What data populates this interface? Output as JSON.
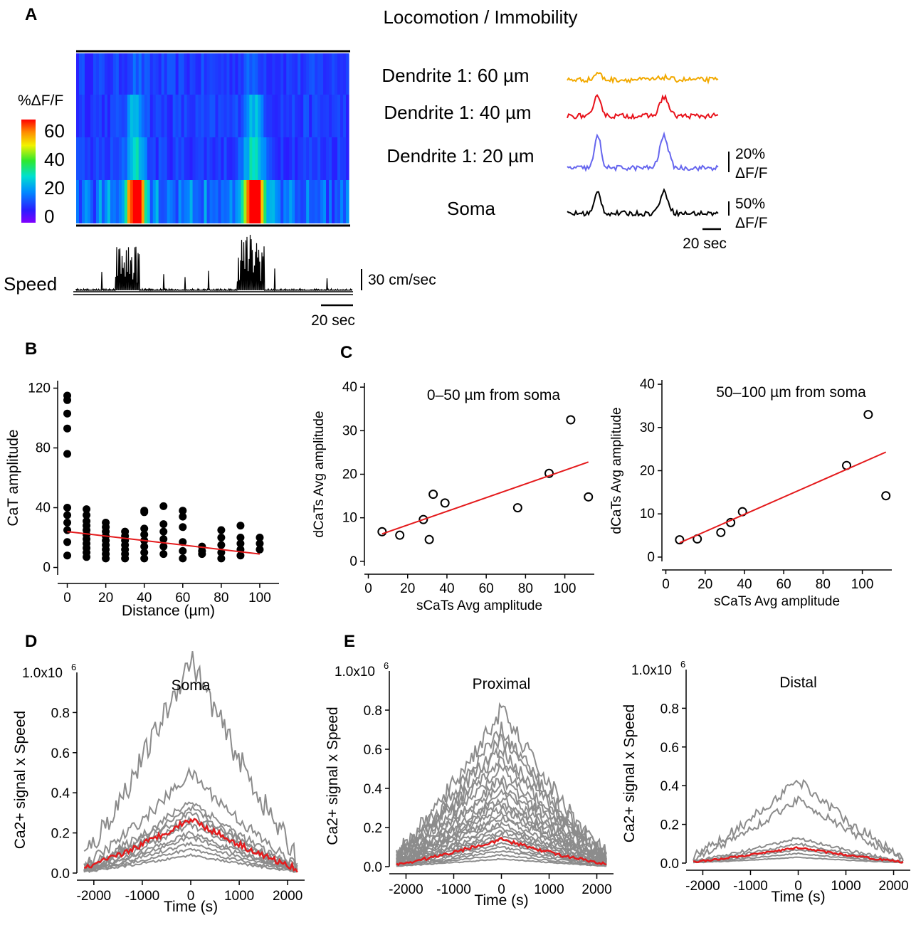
{
  "panels": {
    "A": "A",
    "B": "B",
    "C": "C",
    "D": "D",
    "E": "E"
  },
  "panelA": {
    "title": "Locomotion / Immobility",
    "colorbar": {
      "label": "%ΔF/F",
      "ticks": [
        "60",
        "40",
        "20",
        "0"
      ],
      "range": [
        0,
        70
      ]
    },
    "heatmap_rows": [
      "Dendrite 1: 60 µm",
      "Dendrite 1: 40 µm",
      "Dendrite 1: 20 µm",
      "Soma"
    ],
    "speed_label": "Speed",
    "speed_scale": "30 cm/sec",
    "time_scale_left": "20 sec",
    "traces": [
      {
        "label": "Dendrite 1: 60 µm",
        "color": "#f2a900"
      },
      {
        "label": "Dendrite 1: 40 µm",
        "color": "#e8111a"
      },
      {
        "label": "Dendrite 1: 20 µm",
        "color": "#6666ee"
      },
      {
        "label": "Soma",
        "color": "#000000"
      }
    ],
    "trace_scale_top_1": "20%",
    "trace_scale_top_2": "ΔF/F",
    "trace_scale_bot_1": "50%",
    "trace_scale_bot_2": "ΔF/F",
    "time_scale_right": "20 sec"
  },
  "chart_data": [
    {
      "id": "B",
      "type": "scatter",
      "xlabel": "Distance (µm)",
      "ylabel": "CaT amplitude",
      "xlim": [
        -5,
        110
      ],
      "ylim": [
        -5,
        125
      ],
      "xticks": [
        0,
        20,
        40,
        60,
        80,
        100
      ],
      "yticks": [
        0,
        40,
        80,
        120
      ],
      "points": [
        [
          0,
          115
        ],
        [
          0,
          112
        ],
        [
          0,
          103
        ],
        [
          0,
          93
        ],
        [
          0,
          76
        ],
        [
          0,
          40
        ],
        [
          0,
          35
        ],
        [
          0,
          30
        ],
        [
          0,
          25
        ],
        [
          0,
          17
        ],
        [
          0,
          8
        ],
        [
          10,
          39
        ],
        [
          10,
          35
        ],
        [
          10,
          31
        ],
        [
          10,
          28
        ],
        [
          10,
          25
        ],
        [
          10,
          22
        ],
        [
          10,
          19
        ],
        [
          10,
          16
        ],
        [
          10,
          13
        ],
        [
          10,
          10
        ],
        [
          10,
          7
        ],
        [
          20,
          30
        ],
        [
          20,
          27
        ],
        [
          20,
          24
        ],
        [
          20,
          21
        ],
        [
          20,
          18
        ],
        [
          20,
          15
        ],
        [
          20,
          12
        ],
        [
          20,
          9
        ],
        [
          20,
          6
        ],
        [
          30,
          24
        ],
        [
          30,
          21
        ],
        [
          30,
          18
        ],
        [
          30,
          15
        ],
        [
          30,
          12
        ],
        [
          30,
          9
        ],
        [
          30,
          6
        ],
        [
          40,
          38
        ],
        [
          40,
          37
        ],
        [
          40,
          26
        ],
        [
          40,
          22
        ],
        [
          40,
          18
        ],
        [
          40,
          14
        ],
        [
          40,
          10
        ],
        [
          40,
          6
        ],
        [
          50,
          41
        ],
        [
          50,
          29
        ],
        [
          50,
          24
        ],
        [
          50,
          19
        ],
        [
          50,
          14
        ],
        [
          50,
          9
        ],
        [
          60,
          38
        ],
        [
          60,
          34
        ],
        [
          60,
          27
        ],
        [
          60,
          17
        ],
        [
          60,
          11
        ],
        [
          60,
          6
        ],
        [
          70,
          14
        ],
        [
          70,
          11
        ],
        [
          70,
          9
        ],
        [
          80,
          25
        ],
        [
          80,
          20
        ],
        [
          80,
          15
        ],
        [
          80,
          10
        ],
        [
          80,
          6
        ],
        [
          90,
          28
        ],
        [
          90,
          20
        ],
        [
          90,
          16
        ],
        [
          90,
          12
        ],
        [
          90,
          8
        ],
        [
          100,
          20
        ],
        [
          100,
          16
        ],
        [
          100,
          12
        ]
      ],
      "fit": [
        [
          0,
          24
        ],
        [
          100,
          9
        ]
      ],
      "fit_color": "#e41a1c"
    },
    {
      "id": "C1",
      "type": "scatter",
      "title": "0–50 µm from soma",
      "xlabel": "sCaTs Avg amplitude",
      "ylabel": "dCaTs Avg amplitude",
      "xlim": [
        -2,
        115
      ],
      "ylim": [
        -1,
        41
      ],
      "xticks": [
        0,
        20,
        40,
        60,
        80,
        100
      ],
      "yticks": [
        0,
        10,
        20,
        30,
        40
      ],
      "points": [
        [
          7,
          6.8
        ],
        [
          16,
          6
        ],
        [
          28,
          9.6
        ],
        [
          31,
          5
        ],
        [
          33,
          15.4
        ],
        [
          39,
          13.4
        ],
        [
          76,
          12.3
        ],
        [
          92,
          20.2
        ],
        [
          103,
          32.5
        ],
        [
          112,
          14.8
        ]
      ],
      "fit": [
        [
          7,
          6.3
        ],
        [
          112,
          22.8
        ]
      ],
      "fit_color": "#e41a1c"
    },
    {
      "id": "C2",
      "type": "scatter",
      "title": "50–100 µm from soma",
      "xlabel": "sCaTs Avg amplitude",
      "ylabel": "dCaTs Avg amplitude",
      "xlim": [
        -2,
        115
      ],
      "ylim": [
        -1,
        41
      ],
      "xticks": [
        0,
        20,
        40,
        60,
        80,
        100
      ],
      "yticks": [
        0,
        10,
        20,
        30,
        40
      ],
      "points": [
        [
          7,
          4
        ],
        [
          16,
          4.2
        ],
        [
          28,
          5.7
        ],
        [
          33,
          8
        ],
        [
          39,
          10.5
        ],
        [
          92,
          21.2
        ],
        [
          103,
          33
        ],
        [
          112,
          14.2
        ]
      ],
      "fit": [
        [
          7,
          3.3
        ],
        [
          112,
          24.3
        ]
      ],
      "fit_color": "#e41a1c"
    },
    {
      "id": "D",
      "type": "line",
      "title": "Soma",
      "xlabel": "Time (s)",
      "ylabel": "Ca2+ signal x Speed",
      "ytop_label": "1.0x10",
      "ytop_exp": "6",
      "xlim": [
        -2350,
        2350
      ],
      "ylim": [
        0,
        1.0
      ],
      "xticks": [
        -2000,
        -1000,
        0,
        1000,
        2000
      ],
      "yticks": [
        "0.0",
        "0.2",
        "0.4",
        "0.6",
        "0.8"
      ],
      "gray_peaks": [
        1.07,
        0.5,
        0.36,
        0.32,
        0.3,
        0.27,
        0.24,
        0.2,
        0.18,
        0.15,
        0.12,
        0.09
      ],
      "mean_peak": 0.27,
      "mean_color": "#e41a1c",
      "gray_color": "#8c8c8c"
    },
    {
      "id": "E1",
      "type": "line",
      "title": "Proximal",
      "xlabel": "Time (s)",
      "ylabel": "Ca2+ signal x Speed",
      "ytop_label": "1.0x10",
      "ytop_exp": "6",
      "xlim": [
        -2350,
        2350
      ],
      "ylim": [
        0,
        1.0
      ],
      "xticks": [
        -2000,
        -1000,
        0,
        1000,
        2000
      ],
      "yticks": [
        "0.0",
        "0.2",
        "0.4",
        "0.6",
        "0.8"
      ],
      "gray_peaks": [
        0.8,
        0.7,
        0.65,
        0.6,
        0.55,
        0.5,
        0.45,
        0.42,
        0.38,
        0.35,
        0.32,
        0.3,
        0.27,
        0.25,
        0.22,
        0.2,
        0.18,
        0.16,
        0.14,
        0.12,
        0.1,
        0.08,
        0.06,
        0.04
      ],
      "mean_peak": 0.14,
      "mean_color": "#e41a1c",
      "gray_color": "#8c8c8c"
    },
    {
      "id": "E2",
      "type": "line",
      "title": "Distal",
      "xlabel": "Time (s)",
      "ylabel": "Ca2+ signal x Speed",
      "ytop_label": "1.0x10",
      "ytop_exp": "6",
      "xlim": [
        -2350,
        2350
      ],
      "ylim": [
        0,
        1.0
      ],
      "xticks": [
        -2000,
        -1000,
        0,
        1000,
        2000
      ],
      "yticks": [
        "0.0",
        "0.2",
        "0.4",
        "0.6",
        "0.8"
      ],
      "gray_peaks": [
        0.43,
        0.33,
        0.13,
        0.1,
        0.07,
        0.05,
        0.03
      ],
      "mean_peak": 0.08,
      "mean_color": "#e41a1c",
      "gray_color": "#8c8c8c"
    }
  ]
}
